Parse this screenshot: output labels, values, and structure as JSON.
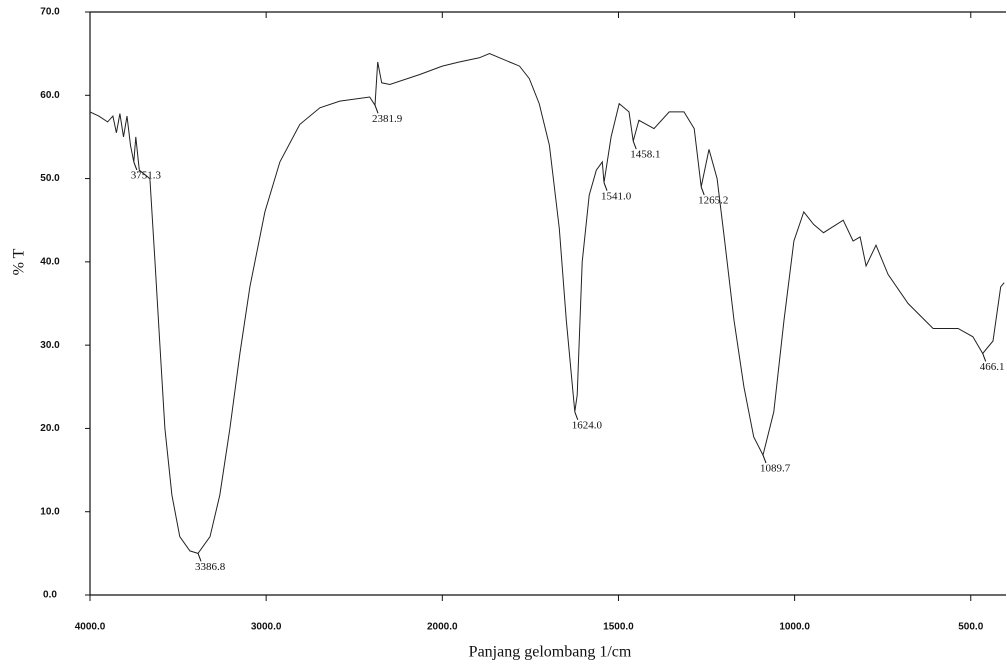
{
  "chart_data": {
    "type": "line",
    "x_label": "Panjang gelombang 1/cm",
    "y_label": "% T",
    "xlim": [
      4000,
      400
    ],
    "xscale_break": {
      "at": 2000,
      "expansion": 2
    },
    "ylim": [
      0,
      70
    ],
    "xticks": [
      {
        "value": 4000,
        "label": "4000.0"
      },
      {
        "value": 3000,
        "label": "3000.0"
      },
      {
        "value": 2000,
        "label": "2000.0"
      },
      {
        "value": 1500,
        "label": "1500.0"
      },
      {
        "value": 1000,
        "label": "1000.0"
      },
      {
        "value": 500,
        "label": "500.0"
      }
    ],
    "yticks": [
      {
        "value": 0,
        "label": "0.0"
      },
      {
        "value": 10,
        "label": "10.0"
      },
      {
        "value": 20,
        "label": "20.0"
      },
      {
        "value": 30,
        "label": "30.0"
      },
      {
        "value": 40,
        "label": "40.0"
      },
      {
        "value": 50,
        "label": "50.0"
      },
      {
        "value": 60,
        "label": "60.0"
      },
      {
        "value": 70,
        "label": "70.0"
      }
    ],
    "x": [
      4000,
      3950,
      3900,
      3870,
      3850,
      3830,
      3810,
      3790,
      3770,
      3751.3,
      3740,
      3720,
      3660,
      3631,
      3603,
      3575,
      3535,
      3490,
      3433,
      3386.8,
      3319,
      3263,
      3206,
      3149,
      3092,
      3007,
      2922,
      2809,
      2695,
      2582,
      2412,
      2381.9,
      2367,
      2344,
      2298,
      2128,
      2000,
      1952,
      1895,
      1866,
      1809,
      1781,
      1753,
      1725,
      1696,
      1668,
      1648,
      1624.0,
      1617,
      1603,
      1583,
      1563,
      1546,
      1541.0,
      1521,
      1498,
      1470,
      1458.1,
      1442,
      1399,
      1356,
      1314,
      1285,
      1265.2,
      1243,
      1220,
      1200,
      1172,
      1144,
      1116,
      1089.7,
      1059,
      1030,
      1002,
      974,
      946,
      918,
      862,
      834,
      814,
      797,
      769,
      735,
      678,
      607,
      536,
      494,
      466.1,
      437,
      415,
      405
    ],
    "series": [
      {
        "color": "#222222",
        "values": [
          58,
          57.5,
          56.8,
          57.5,
          55.5,
          57.8,
          55,
          57.5,
          54,
          52,
          55,
          51,
          50,
          40,
          30,
          20,
          12,
          7,
          5.3,
          5,
          7,
          12,
          20,
          29,
          37,
          46,
          52,
          56.5,
          58.5,
          59.3,
          59.8,
          58.8,
          64,
          61.5,
          61.3,
          62.5,
          63.5,
          64,
          64.5,
          65,
          64,
          63.5,
          62,
          59,
          54,
          44,
          33,
          22,
          24,
          40,
          48,
          51,
          52,
          49.5,
          55,
          59,
          58,
          54.5,
          57,
          56,
          58,
          58,
          56,
          49,
          53.5,
          50,
          43,
          33,
          25,
          19,
          16.8,
          22,
          33,
          42.5,
          46,
          44.5,
          43.5,
          45,
          42.5,
          43,
          39.5,
          42,
          38.5,
          35,
          32,
          32,
          31,
          29,
          30.5,
          37,
          37.5
        ]
      }
    ],
    "peaks": [
      {
        "value": 3751.3,
        "label": "3751.3"
      },
      {
        "value": 3386.8,
        "label": "3386.8"
      },
      {
        "value": 2381.9,
        "label": "2381.9"
      },
      {
        "value": 1624.0,
        "label": "1624.0"
      },
      {
        "value": 1541.0,
        "label": "1541.0"
      },
      {
        "value": 1458.1,
        "label": "1458.1"
      },
      {
        "value": 1265.2,
        "label": "1265.2"
      },
      {
        "value": 1089.7,
        "label": "1089.7"
      },
      {
        "value": 466.1,
        "label": "466.1"
      }
    ]
  }
}
